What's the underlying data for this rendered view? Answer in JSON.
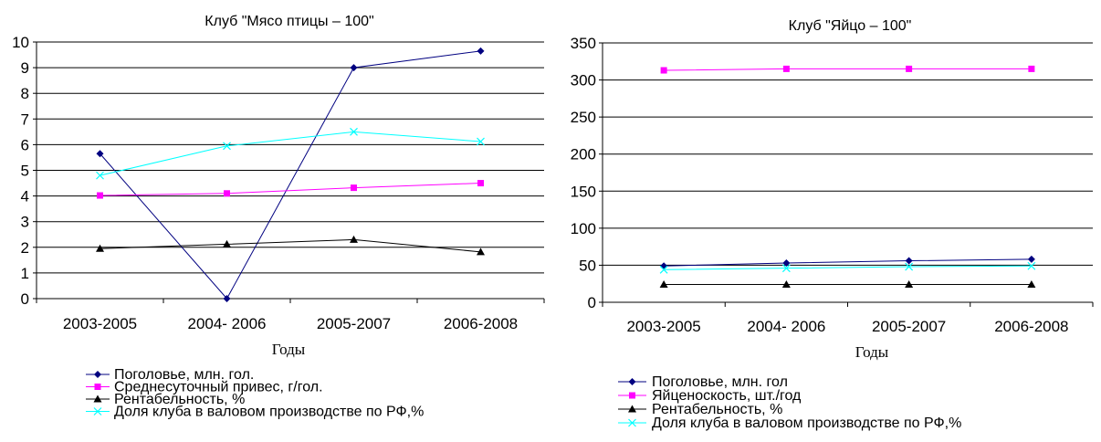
{
  "chart_data": [
    {
      "type": "line",
      "title": "Клуб \"Мясо птицы – 100\"",
      "xlabel": "Годы",
      "ylabel": "",
      "categories": [
        "2003-2005",
        "2004- 2006",
        "2005-2007",
        "2006-2008"
      ],
      "ylim": [
        0,
        10
      ],
      "yticks": [
        "0",
        "1",
        "2",
        "3",
        "4",
        "5",
        "6",
        "7",
        "8",
        "9",
        "10"
      ],
      "grid": true,
      "legend_position": "bottom",
      "series": [
        {
          "name": "Поголовье, млн. гол.",
          "values": [
            5.65,
            0.0,
            9.0,
            9.65
          ],
          "color": "#000080",
          "marker": "diamond"
        },
        {
          "name": "Среднесуточный привес, г/гол.",
          "values": [
            4.02,
            4.1,
            4.32,
            4.5
          ],
          "color": "#ff00ff",
          "marker": "square"
        },
        {
          "name": "Рентабельность, %",
          "values": [
            1.95,
            2.12,
            2.3,
            1.82
          ],
          "color": "#000000",
          "marker": "triangle"
        },
        {
          "name": "Доля клуба в валовом производстве по РФ,%",
          "values": [
            4.8,
            5.95,
            6.5,
            6.12
          ],
          "color": "#00ffff",
          "marker": "x"
        }
      ]
    },
    {
      "type": "line",
      "title": "Клуб \"Яйцо – 100\"",
      "xlabel": "Годы",
      "ylabel": "",
      "categories": [
        "2003-2005",
        "2004- 2006",
        "2005-2007",
        "2006-2008"
      ],
      "ylim": [
        0,
        350
      ],
      "yticks": [
        "0",
        "50",
        "100",
        "150",
        "200",
        "250",
        "300",
        "350"
      ],
      "grid": true,
      "legend_position": "bottom",
      "series": [
        {
          "name": "Поголовье, млн. гол",
          "values": [
            49,
            53,
            56,
            58
          ],
          "color": "#000080",
          "marker": "diamond"
        },
        {
          "name": "Яйценоскость, шт./год",
          "values": [
            313,
            315,
            315,
            315
          ],
          "color": "#ff00ff",
          "marker": "square"
        },
        {
          "name": "Рентабельность, %",
          "values": [
            24,
            24,
            24,
            24
          ],
          "color": "#000000",
          "marker": "triangle"
        },
        {
          "name": "Доля клуба в валовом производстве по РФ,%",
          "values": [
            44,
            46,
            48,
            49
          ],
          "color": "#00ffff",
          "marker": "x"
        }
      ]
    }
  ]
}
